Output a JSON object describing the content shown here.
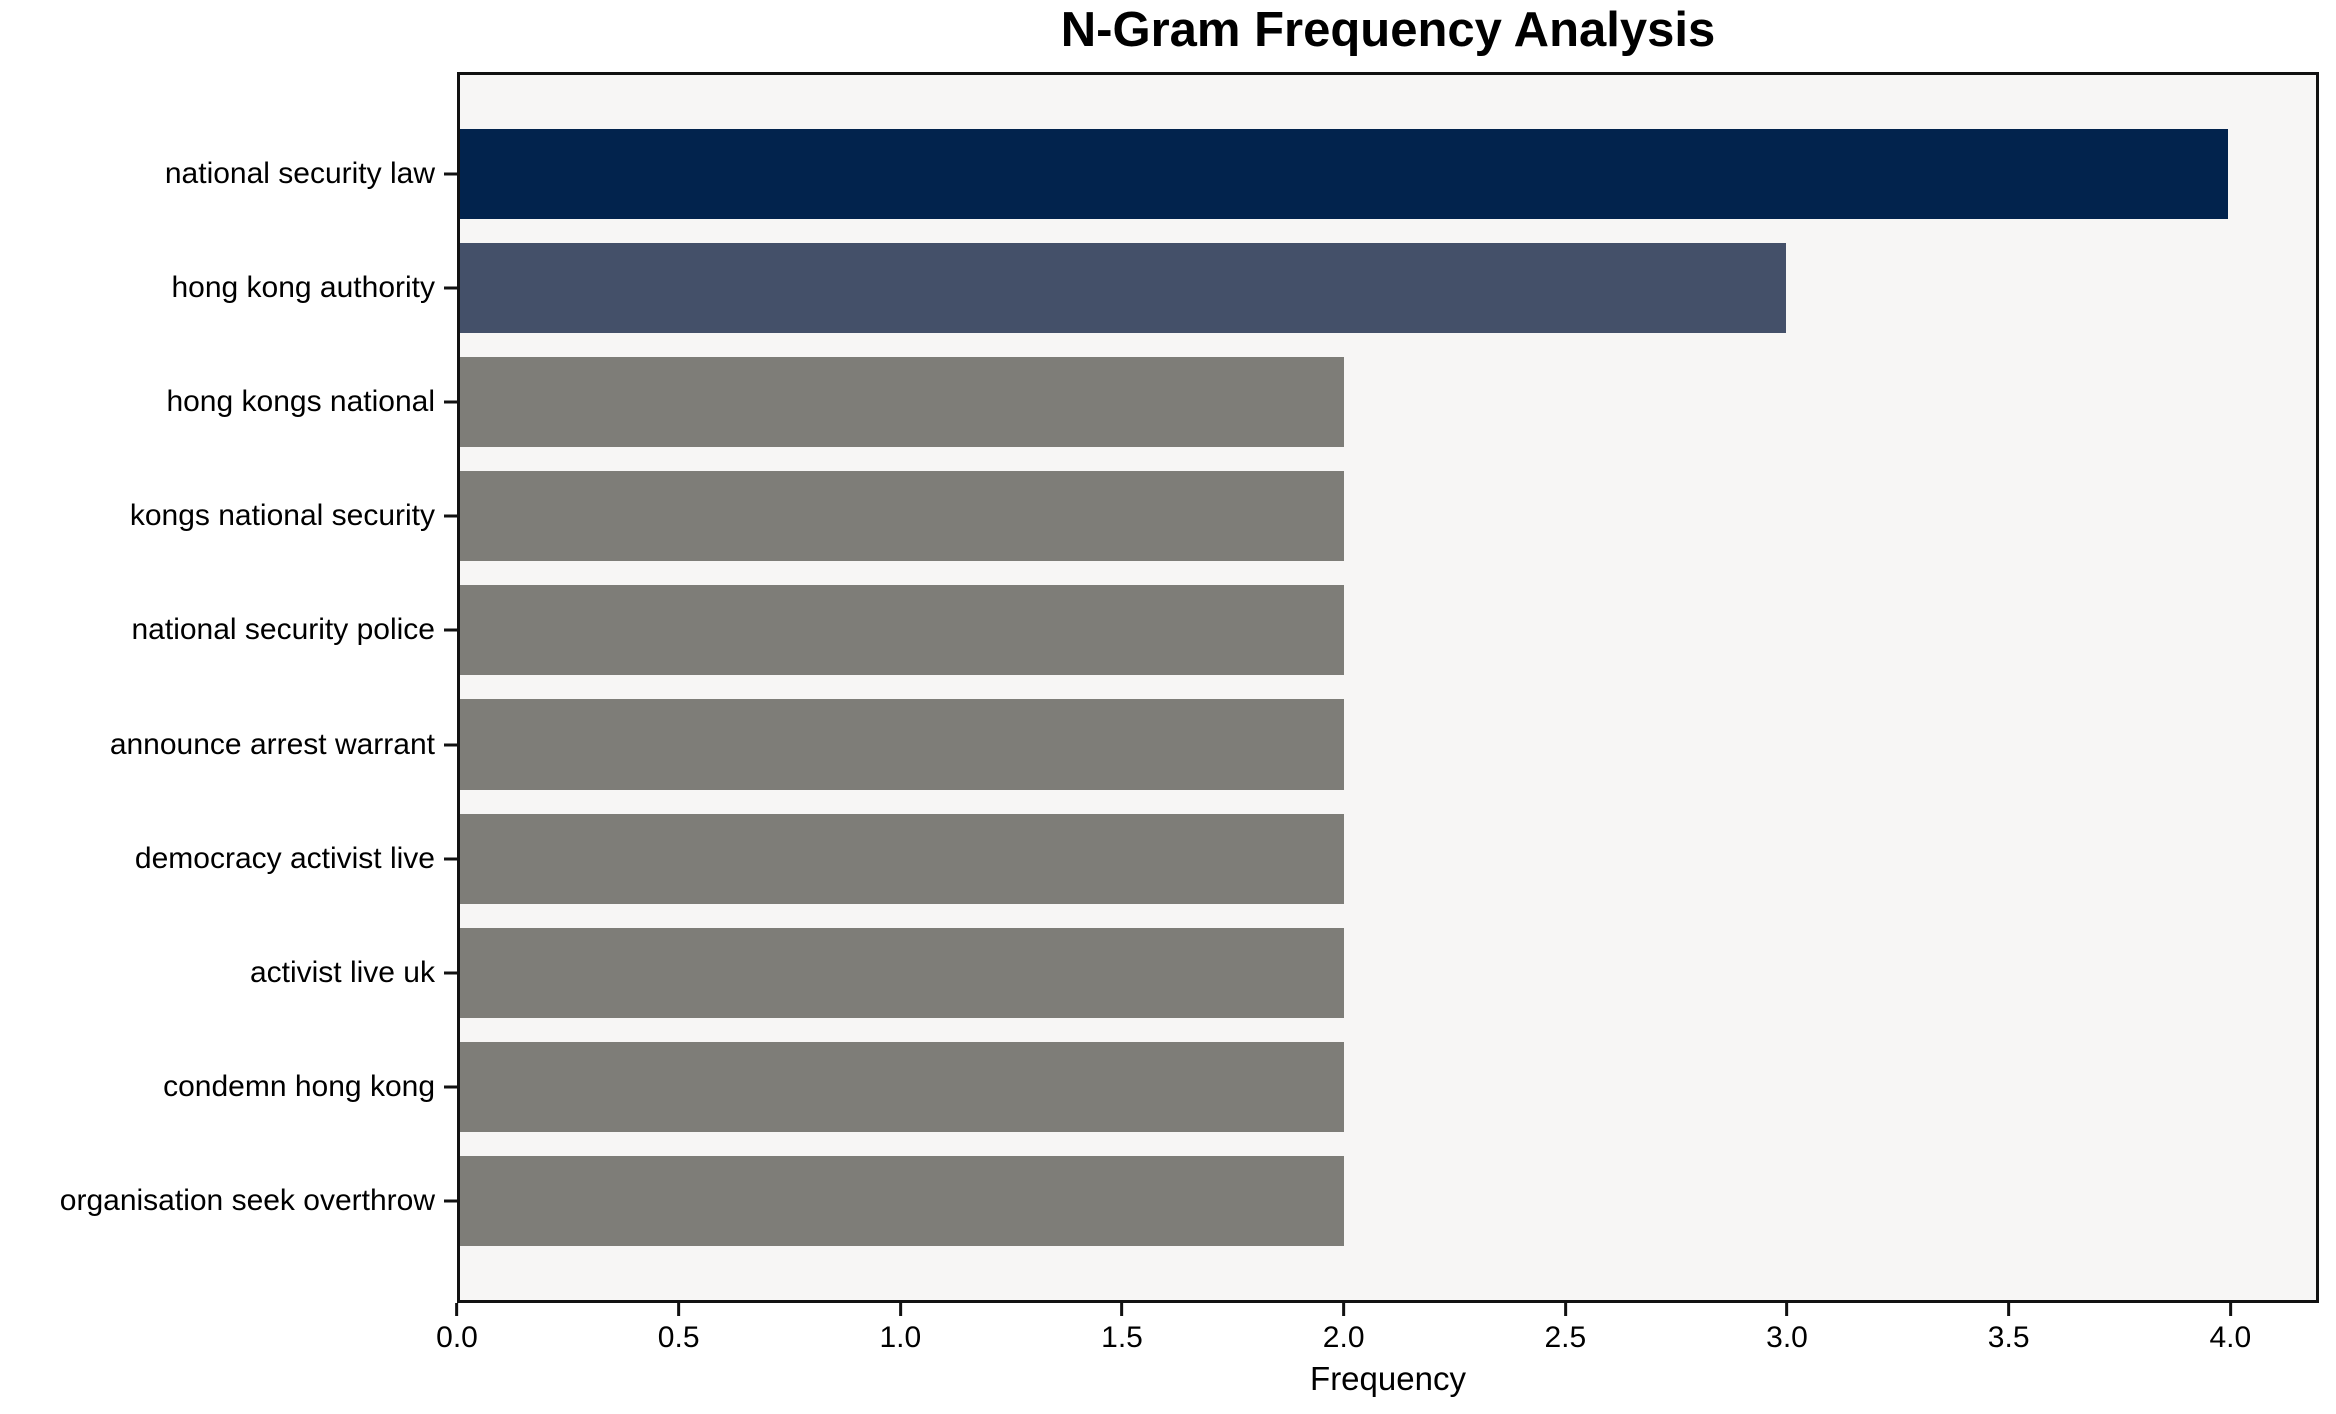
{
  "chart_data": {
    "type": "bar",
    "orientation": "horizontal",
    "title": "N-Gram Frequency Analysis",
    "xlabel": "Frequency",
    "ylabel": "",
    "categories": [
      "national security law",
      "hong kong authority",
      "hong kongs national",
      "kongs national security",
      "national security police",
      "announce arrest warrant",
      "democracy activist live",
      "activist live uk",
      "condemn hong kong",
      "organisation seek overthrow"
    ],
    "values": [
      4,
      3,
      2,
      2,
      2,
      2,
      2,
      2,
      2,
      2
    ],
    "bar_colors": [
      "#02234d",
      "#445069",
      "#7e7d78",
      "#7e7d78",
      "#7e7d78",
      "#7e7d78",
      "#7e7d78",
      "#7e7d78",
      "#7e7d78",
      "#7e7d78"
    ],
    "xlim": [
      0,
      4.2
    ],
    "xticks": [
      0.0,
      0.5,
      1.0,
      1.5,
      2.0,
      2.5,
      3.0,
      3.5,
      4.0
    ],
    "xtick_labels": [
      "0.0",
      "0.5",
      "1.0",
      "1.5",
      "2.0",
      "2.5",
      "3.0",
      "3.5",
      "4.0"
    ],
    "grid": false,
    "legend_position": "none",
    "colors": {
      "plot_background": "#f7f6f5",
      "figure_background": "#ffffff",
      "spine": "#111111",
      "text": "#000000"
    }
  }
}
